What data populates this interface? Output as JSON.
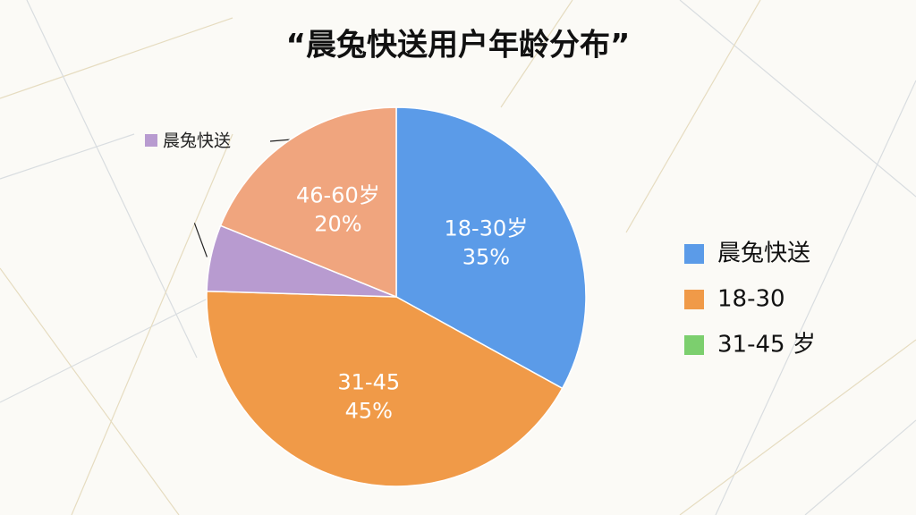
{
  "chart_data": {
    "type": "pie",
    "title": "“晨兔快送用户年龄分布”",
    "categories": [
      "18-30岁",
      "31-45",
      "晨兔快送",
      "46-60岁"
    ],
    "values": [
      35,
      45,
      6,
      20
    ],
    "value_labels": [
      "35%",
      "45%",
      null,
      "20%"
    ],
    "colors": [
      "#5b9be8",
      "#f09a48",
      "#b89bd0",
      "#f0a57e"
    ],
    "legend": {
      "position": "right",
      "entries": [
        {
          "label": "晨兔快送",
          "color": "#5b9be8"
        },
        {
          "label": "18-30",
          "color": "#f09a48"
        },
        {
          "label": "31-45 岁",
          "color": "#7ccf6e"
        }
      ]
    }
  }
}
